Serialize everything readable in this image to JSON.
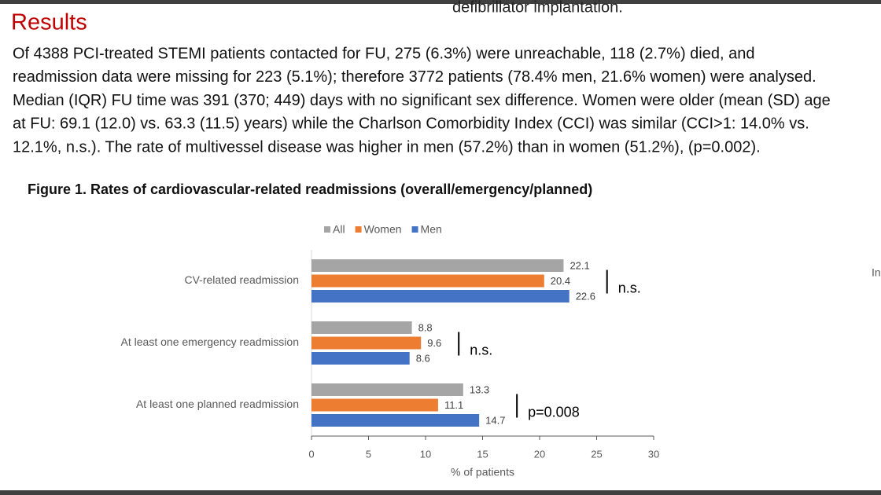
{
  "header": {
    "cut_text": "defibrillator implantation.",
    "title": "Results",
    "edge_text": "In"
  },
  "paragraph": [
    "Of 4388 PCI-treated STEMI patients contacted for FU, 275 (6.3%) were unreachable, 118 (2.7%) died, and",
    "readmission data were missing for 223 (5.1%); therefore 3772 patients (78.4% men, 21.6% women) were analysed.",
    "Median (IQR) FU time was 391 (370; 449) days with no significant sex difference. Women were older (mean (SD) age",
    "at FU: 69.1 (12.0) vs. 63.3 (11.5) years) while the Charlson Comorbidity Index (CCI) was similar (CCI>1: 14.0% vs.",
    "12.1%, n.s.). The rate of multivessel disease was higher in men (57.2%) than in women (51.2%), (p=0.002)."
  ],
  "figure_title": "Figure 1. Rates of cardiovascular-related readmissions (overall/emergency/planned)",
  "chart_data": {
    "type": "bar",
    "orientation": "horizontal",
    "categories": [
      "CV-related readmission",
      "At least one emergency readmission",
      "At least one planned readmission"
    ],
    "series": [
      {
        "name": "All",
        "color": "#a5a5a5",
        "values": [
          22.1,
          8.8,
          13.3
        ]
      },
      {
        "name": "Women",
        "color": "#ed7d31",
        "values": [
          20.4,
          9.6,
          11.1
        ]
      },
      {
        "name": "Men",
        "color": "#4472c4",
        "values": [
          22.6,
          8.6,
          14.7
        ]
      }
    ],
    "xlim": [
      0,
      30
    ],
    "xticks": [
      0,
      5,
      10,
      15,
      20,
      25,
      30
    ],
    "xlabel": "% of patients",
    "legend": "top",
    "annotations": [
      "n.s.",
      "n.s.",
      "p=0.008"
    ]
  }
}
